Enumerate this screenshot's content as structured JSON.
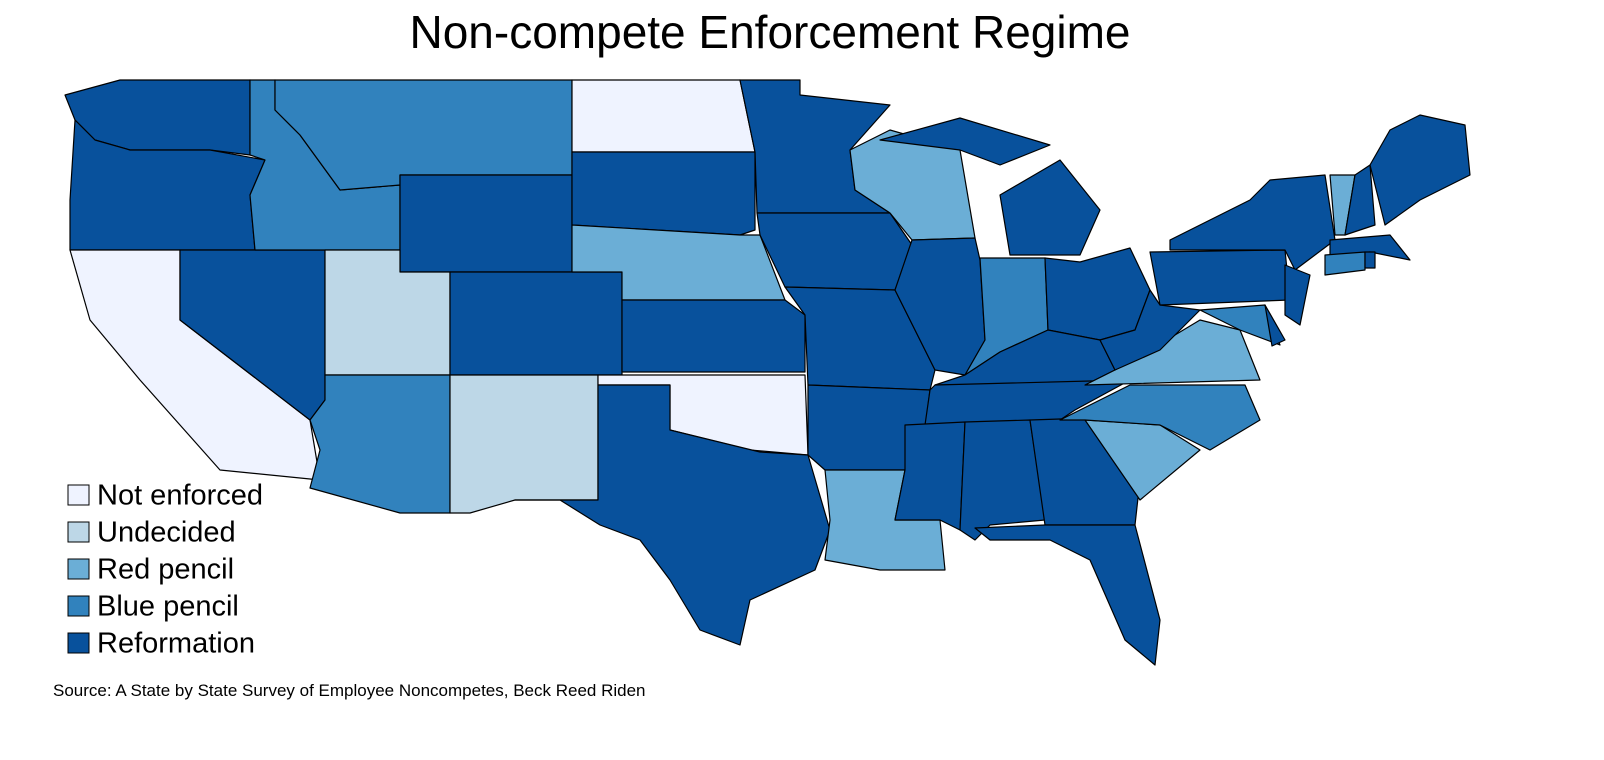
{
  "title": "Non-compete Enforcement Regime",
  "legend": [
    {
      "label": "Not enforced",
      "color": "#eff3ff"
    },
    {
      "label": "Undecided",
      "color": "#bdd7e7"
    },
    {
      "label": "Red pencil",
      "color": "#6baed6"
    },
    {
      "label": "Blue pencil",
      "color": "#3182bd"
    },
    {
      "label": "Reformation",
      "color": "#08519c"
    }
  ],
  "source": "Source: A State by State Survey of Employee Noncompetes, Beck Reed Riden"
}
